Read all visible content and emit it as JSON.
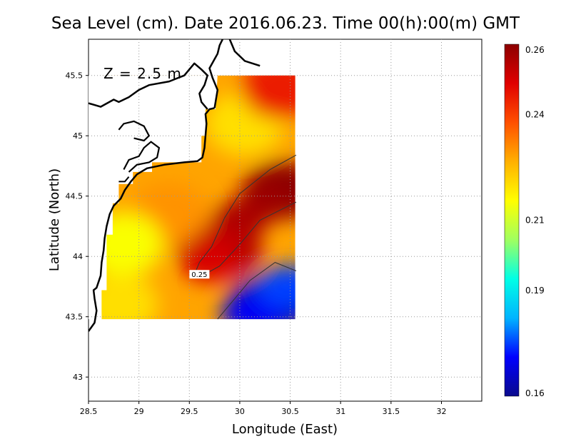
{
  "chart_data": {
    "type": "heatmap",
    "title": "Sea Level (cm). Date 2016.06.23. Time 00(h):00(m) GMT",
    "annotation": "Z = 2.5 m",
    "xlabel": "Longitude (East)",
    "ylabel": "Latitude (North)",
    "xlim": [
      28.5,
      32.4
    ],
    "ylim": [
      42.8,
      45.8
    ],
    "x_ticks": [
      "28.5",
      "29",
      "29.5",
      "30",
      "30.5",
      "31",
      "31.5",
      "32"
    ],
    "y_ticks": [
      "43",
      "43.5",
      "44",
      "44.5",
      "45",
      "45.5"
    ],
    "grid": true,
    "colorbar": {
      "min": 0.16,
      "max": 0.26,
      "ticks": [
        "0.26",
        "0.24",
        "0.21",
        "0.19",
        "0.16"
      ],
      "colors": [
        "#0a0a8c",
        "#0000ff",
        "#00b4ff",
        "#00ffe6",
        "#a0ff60",
        "#ffff00",
        "#ffb000",
        "#ff5000",
        "#e00000",
        "#8c0000"
      ]
    },
    "data_domain": {
      "lon": [
        28.63,
        30.55
      ],
      "lat": [
        43.48,
        45.5
      ]
    },
    "field_features": [
      {
        "lon": 30.45,
        "lat": 44.55,
        "value": 0.26
      },
      {
        "lon": 29.8,
        "lat": 44.05,
        "value": 0.255
      },
      {
        "lon": 30.3,
        "lat": 43.6,
        "value": 0.165
      },
      {
        "lon": 30.05,
        "lat": 45.1,
        "value": 0.22
      },
      {
        "lon": 29.3,
        "lat": 44.35,
        "value": 0.23
      },
      {
        "lon": 28.85,
        "lat": 44.1,
        "value": 0.215
      },
      {
        "lon": 28.8,
        "lat": 43.6,
        "value": 0.22
      },
      {
        "lon": 30.4,
        "lat": 45.4,
        "value": 0.245
      }
    ],
    "contours": [
      {
        "label": "0.25",
        "value": 0.25,
        "label_at": {
          "lon": 29.6,
          "lat": 43.84
        }
      }
    ]
  }
}
